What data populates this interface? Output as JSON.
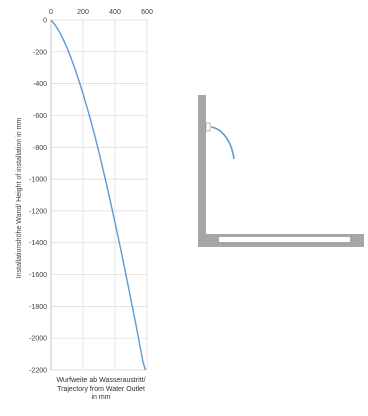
{
  "chart_data": {
    "type": "line",
    "x_ticks": [
      0,
      200,
      400,
      600
    ],
    "y_ticks": [
      0,
      -200,
      -400,
      -600,
      -800,
      -1000,
      -1200,
      -1400,
      -1600,
      -1800,
      -2000,
      -2200
    ],
    "xlim": [
      0,
      600
    ],
    "ylim": [
      -2200,
      0
    ],
    "grid": true,
    "x_axis_position": "top",
    "xlabel": [
      "Wurfweite ab Wasseraustritt/",
      "Trajectory from Water Outlet",
      "in mm"
    ],
    "ylabel": "Installationshöhe Wand/ Height of installation in mm",
    "series": [
      {
        "color": "#5b9bd5",
        "x": [
          0,
          25,
          50,
          75,
          100,
          125,
          150,
          175,
          200,
          225,
          250,
          275,
          300,
          325,
          350,
          375,
          400,
          425,
          450,
          475,
          500,
          525,
          550,
          575,
          590
        ],
        "y": [
          0,
          -30,
          -70,
          -118,
          -175,
          -238,
          -308,
          -383,
          -463,
          -548,
          -638,
          -733,
          -833,
          -938,
          -1045,
          -1158,
          -1272,
          -1390,
          -1510,
          -1635,
          -1760,
          -1885,
          -2015,
          -2150,
          -2200
        ]
      }
    ]
  },
  "diagram": {
    "wall_color": "#a6a6a6",
    "spray_color": "#5b9bd5"
  }
}
